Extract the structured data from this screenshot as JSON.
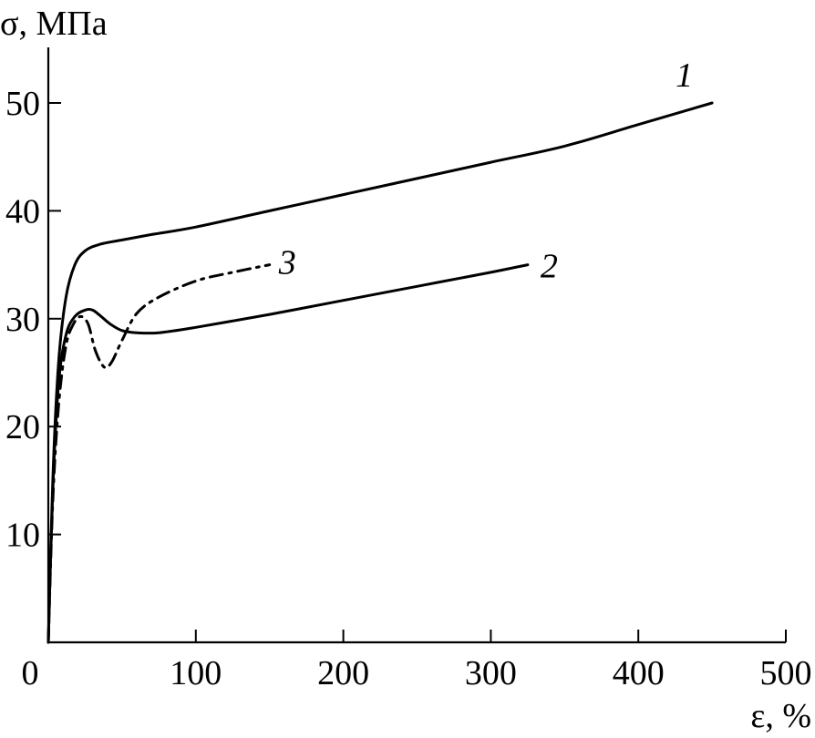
{
  "chart_data": {
    "type": "line",
    "title": "",
    "xlabel": "ε, %",
    "ylabel": "σ, МПа",
    "xlim": [
      0,
      500
    ],
    "ylim": [
      0,
      55
    ],
    "x_ticks": [
      0,
      100,
      200,
      300,
      400,
      500
    ],
    "x_tick_labels": [
      "0",
      "100",
      "200",
      "300",
      "400",
      "500"
    ],
    "y_ticks": [
      10,
      20,
      30,
      40,
      50
    ],
    "y_tick_labels": [
      "10",
      "20",
      "30",
      "40",
      "50"
    ],
    "grid": false,
    "legend": "none",
    "series": [
      {
        "label": "1",
        "style": "solid",
        "x": [
          0,
          3,
          7,
          12,
          18,
          25,
          35,
          50,
          70,
          100,
          150,
          200,
          250,
          300,
          350,
          400,
          450
        ],
        "y": [
          0,
          15,
          26,
          32,
          35,
          36.3,
          36.9,
          37.3,
          37.8,
          38.5,
          40,
          41.5,
          43,
          44.5,
          46,
          48,
          50
        ]
      },
      {
        "label": "2",
        "style": "solid",
        "x": [
          0,
          3,
          7,
          12,
          18,
          25,
          30,
          35,
          42,
          50,
          60,
          75,
          100,
          150,
          200,
          250,
          300,
          325
        ],
        "y": [
          0,
          14,
          24,
          28.5,
          30.2,
          30.8,
          30.8,
          30.3,
          29.5,
          28.9,
          28.7,
          28.7,
          29.2,
          30.4,
          31.7,
          33,
          34.3,
          35
        ]
      },
      {
        "label": "3",
        "style": "dashdot",
        "x": [
          0,
          3,
          7,
          12,
          17,
          22,
          27,
          32,
          38,
          43,
          50,
          60,
          75,
          100,
          125,
          150
        ],
        "y": [
          0,
          13,
          22,
          27.5,
          29.5,
          30.2,
          29.5,
          27,
          25.5,
          26,
          28,
          30.5,
          32,
          33.5,
          34.3,
          35
        ]
      }
    ]
  }
}
